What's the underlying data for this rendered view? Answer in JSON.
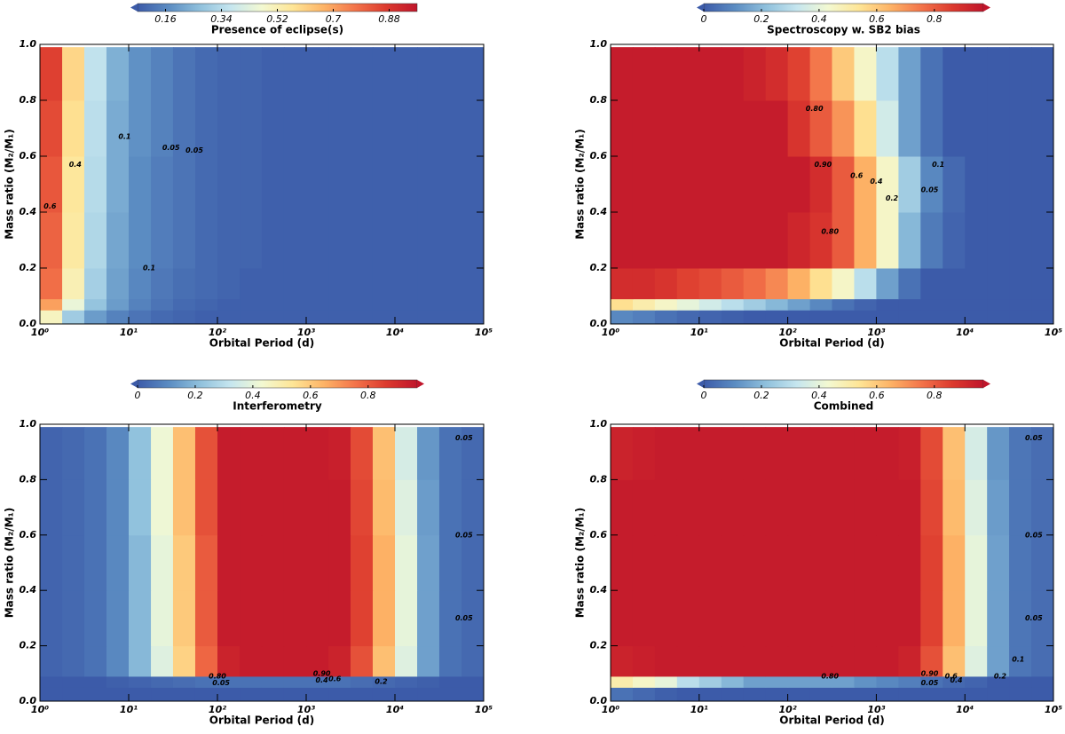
{
  "chart_data": [
    {
      "type": "heatmap",
      "title": "Presence of eclipse(s)",
      "xlabel": "Orbital Period (d)",
      "ylabel": "Mass ratio (M₂/M₁)",
      "xscale": "log",
      "xlim": [
        1,
        100000
      ],
      "ylim": [
        0,
        1
      ],
      "xticks": [
        {
          "value": 1,
          "label": "10⁰"
        },
        {
          "value": 10,
          "label": "10¹"
        },
        {
          "value": 100,
          "label": "10²"
        },
        {
          "value": 1000,
          "label": "10³"
        },
        {
          "value": 10000,
          "label": "10⁴"
        },
        {
          "value": 100000,
          "label": "10⁵"
        }
      ],
      "yticks": [
        {
          "value": 0,
          "label": "0.0"
        },
        0.2,
        0.4,
        0.6,
        0.8,
        {
          "value": 1,
          "label": "1.0"
        }
      ],
      "clim": [
        0.07,
        0.97
      ],
      "cticks": [
        0.16,
        0.34,
        0.52,
        0.7,
        0.88
      ],
      "extend": "min",
      "colormap": [
        "#3c5ba9",
        "#5b8cc2",
        "#8fc0dc",
        "#c6e6ef",
        "#f3f9d2",
        "#fee596",
        "#fdb366",
        "#f3744a",
        "#dc3a2e",
        "#c0152b"
      ],
      "x_edges": [
        1,
        1.78,
        3.16,
        5.62,
        10,
        17.8,
        31.6,
        56.2,
        100,
        178,
        316,
        562,
        1000,
        1780,
        3160,
        5620,
        10000,
        17800,
        31600,
        56200,
        100000
      ],
      "y_edges": [
        0,
        0.05,
        0.09,
        0.2,
        0.4,
        0.6,
        0.8,
        0.99
      ],
      "values": [
        [
          0.5,
          0.3,
          0.2,
          0.15,
          0.12,
          0.1,
          0.09,
          0.08,
          0.08,
          0.08,
          0.08,
          0.08,
          0.08,
          0.08,
          0.08,
          0.08,
          0.08,
          0.08,
          0.08,
          0.08
        ],
        [
          0.7,
          0.45,
          0.28,
          0.2,
          0.15,
          0.12,
          0.1,
          0.09,
          0.08,
          0.08,
          0.08,
          0.08,
          0.08,
          0.08,
          0.08,
          0.08,
          0.08,
          0.08,
          0.08,
          0.08
        ],
        [
          0.78,
          0.52,
          0.31,
          0.21,
          0.16,
          0.13,
          0.11,
          0.1,
          0.09,
          0.08,
          0.08,
          0.08,
          0.08,
          0.08,
          0.08,
          0.08,
          0.08,
          0.08,
          0.08,
          0.08
        ],
        [
          0.8,
          0.55,
          0.33,
          0.22,
          0.17,
          0.14,
          0.12,
          0.1,
          0.09,
          0.09,
          0.08,
          0.08,
          0.08,
          0.08,
          0.08,
          0.08,
          0.08,
          0.08,
          0.08,
          0.08
        ],
        [
          0.82,
          0.56,
          0.34,
          0.23,
          0.17,
          0.14,
          0.12,
          0.1,
          0.09,
          0.09,
          0.08,
          0.08,
          0.08,
          0.08,
          0.08,
          0.08,
          0.08,
          0.08,
          0.08,
          0.08
        ],
        [
          0.84,
          0.58,
          0.35,
          0.23,
          0.18,
          0.15,
          0.12,
          0.1,
          0.09,
          0.09,
          0.08,
          0.08,
          0.08,
          0.08,
          0.08,
          0.08,
          0.08,
          0.08,
          0.08,
          0.08
        ],
        [
          0.86,
          0.6,
          0.36,
          0.24,
          0.18,
          0.15,
          0.12,
          0.1,
          0.09,
          0.09,
          0.08,
          0.08,
          0.08,
          0.08,
          0.08,
          0.08,
          0.08,
          0.08,
          0.08,
          0.08
        ]
      ],
      "annotations": [
        {
          "text": "0.6",
          "x": 1.3,
          "y": 0.42
        },
        {
          "text": "0.4",
          "x": 2.5,
          "y": 0.57
        },
        {
          "text": "0.1",
          "x": 9,
          "y": 0.67
        },
        {
          "text": "0.05",
          "x": 30,
          "y": 0.63
        },
        {
          "text": "0.05",
          "x": 55,
          "y": 0.62
        },
        {
          "text": "0.1",
          "x": 17,
          "y": 0.2
        }
      ]
    },
    {
      "type": "heatmap",
      "title": "Spectroscopy w. SB2 bias",
      "xlabel": "Orbital Period (d)",
      "ylabel": "Mass ratio (M₂/M₁)",
      "xscale": "log",
      "xlim": [
        1,
        100000
      ],
      "ylim": [
        0,
        1
      ],
      "xticks": [
        {
          "value": 1,
          "label": "10⁰"
        },
        {
          "value": 10,
          "label": "10¹"
        },
        {
          "value": 100,
          "label": "10²"
        },
        {
          "value": 1000,
          "label": "10³"
        },
        {
          "value": 10000,
          "label": "10⁴"
        },
        {
          "value": 100000,
          "label": "10⁵"
        }
      ],
      "yticks": [
        {
          "value": 0,
          "label": "0.0"
        },
        0.2,
        0.4,
        0.6,
        0.8,
        {
          "value": 1,
          "label": "1.0"
        }
      ],
      "clim": [
        0,
        0.97
      ],
      "cticks": [
        0,
        0.2,
        0.4,
        0.6,
        0.8
      ],
      "extend": "both",
      "colormap": [
        "#3c5ba9",
        "#5b8cc2",
        "#8fc0dc",
        "#c6e6ef",
        "#f3f9d2",
        "#fee596",
        "#fdb366",
        "#f3744a",
        "#dc3a2e",
        "#c0152b"
      ],
      "x_edges": [
        1,
        1.78,
        3.16,
        5.62,
        10,
        17.8,
        31.6,
        56.2,
        100,
        178,
        316,
        562,
        1000,
        1780,
        3160,
        5620,
        10000,
        17800,
        31600,
        56200,
        100000
      ],
      "y_edges": [
        0,
        0.05,
        0.09,
        0.2,
        0.4,
        0.6,
        0.8,
        0.99
      ],
      "values": [
        [
          0.1,
          0.08,
          0.05,
          0.03,
          0.02,
          0.01,
          0,
          0,
          0,
          0,
          0,
          0,
          0,
          0,
          0,
          0,
          0,
          0,
          0,
          0
        ],
        [
          0.55,
          0.5,
          0.45,
          0.4,
          0.35,
          0.3,
          0.25,
          0.2,
          0.15,
          0.1,
          0.05,
          0.02,
          0,
          0,
          0,
          0,
          0,
          0,
          0,
          0
        ],
        [
          0.9,
          0.9,
          0.88,
          0.85,
          0.83,
          0.8,
          0.77,
          0.72,
          0.65,
          0.55,
          0.45,
          0.3,
          0.15,
          0.05,
          0,
          0,
          0,
          0,
          0,
          0
        ],
        [
          0.95,
          0.95,
          0.95,
          0.95,
          0.95,
          0.95,
          0.95,
          0.95,
          0.92,
          0.88,
          0.8,
          0.65,
          0.45,
          0.2,
          0.07,
          0.02,
          0,
          0,
          0,
          0
        ],
        [
          0.95,
          0.95,
          0.95,
          0.95,
          0.95,
          0.95,
          0.95,
          0.95,
          0.95,
          0.9,
          0.8,
          0.65,
          0.45,
          0.25,
          0.1,
          0.03,
          0,
          0,
          0,
          0
        ],
        [
          0.95,
          0.95,
          0.95,
          0.95,
          0.95,
          0.95,
          0.95,
          0.95,
          0.88,
          0.8,
          0.7,
          0.55,
          0.35,
          0.15,
          0.05,
          0,
          0,
          0,
          0,
          0
        ],
        [
          0.95,
          0.95,
          0.95,
          0.95,
          0.95,
          0.95,
          0.93,
          0.9,
          0.85,
          0.75,
          0.6,
          0.45,
          0.3,
          0.15,
          0.05,
          0,
          0,
          0,
          0,
          0
        ]
      ],
      "annotations": [
        {
          "text": "0.80",
          "x": 200,
          "y": 0.77
        },
        {
          "text": "0.90",
          "x": 250,
          "y": 0.57
        },
        {
          "text": "0.6",
          "x": 600,
          "y": 0.53
        },
        {
          "text": "0.4",
          "x": 1000,
          "y": 0.51
        },
        {
          "text": "0.2",
          "x": 1500,
          "y": 0.45
        },
        {
          "text": "0.05",
          "x": 4000,
          "y": 0.48
        },
        {
          "text": "0.1",
          "x": 5000,
          "y": 0.57
        },
        {
          "text": "0.80",
          "x": 300,
          "y": 0.33
        }
      ]
    },
    {
      "type": "heatmap",
      "title": "Interferometry",
      "xlabel": "Orbital Period (d)",
      "ylabel": "Mass ratio (M₂/M₁)",
      "xscale": "log",
      "xlim": [
        1,
        100000
      ],
      "ylim": [
        0,
        1
      ],
      "xticks": [
        {
          "value": 1,
          "label": "10⁰"
        },
        {
          "value": 10,
          "label": "10¹"
        },
        {
          "value": 100,
          "label": "10²"
        },
        {
          "value": 1000,
          "label": "10³"
        },
        {
          "value": 10000,
          "label": "10⁴"
        },
        {
          "value": 100000,
          "label": "10⁵"
        }
      ],
      "yticks": [
        {
          "value": 0,
          "label": "0.0"
        },
        0.2,
        0.4,
        0.6,
        0.8,
        {
          "value": 1,
          "label": "1.0"
        }
      ],
      "clim": [
        0,
        0.97
      ],
      "cticks": [
        0,
        0.2,
        0.4,
        0.6,
        0.8
      ],
      "extend": "both",
      "colormap": [
        "#3c5ba9",
        "#5b8cc2",
        "#8fc0dc",
        "#c6e6ef",
        "#f3f9d2",
        "#fee596",
        "#fdb366",
        "#f3744a",
        "#dc3a2e",
        "#c0152b"
      ],
      "x_edges": [
        1,
        1.78,
        3.16,
        5.62,
        10,
        17.8,
        31.6,
        56.2,
        100,
        178,
        316,
        562,
        1000,
        1780,
        3160,
        5620,
        10000,
        17800,
        31600,
        56200,
        100000
      ],
      "y_edges": [
        0,
        0.05,
        0.09,
        0.2,
        0.4,
        0.6,
        0.8,
        0.99
      ],
      "values": [
        [
          0,
          0,
          0,
          0,
          0,
          0,
          0,
          0,
          0,
          0,
          0,
          0,
          0,
          0,
          0,
          0,
          0,
          0,
          0,
          0
        ],
        [
          0,
          0,
          0,
          0.01,
          0.02,
          0.03,
          0.04,
          0.05,
          0.05,
          0.05,
          0.05,
          0.05,
          0.05,
          0.05,
          0.04,
          0.03,
          0.02,
          0.01,
          0,
          0
        ],
        [
          0.02,
          0.03,
          0.05,
          0.1,
          0.2,
          0.38,
          0.58,
          0.78,
          0.93,
          0.95,
          0.95,
          0.95,
          0.95,
          0.93,
          0.82,
          0.62,
          0.38,
          0.15,
          0.05,
          0.03
        ],
        [
          0.02,
          0.03,
          0.05,
          0.1,
          0.2,
          0.4,
          0.6,
          0.8,
          0.95,
          0.95,
          0.95,
          0.95,
          0.95,
          0.95,
          0.85,
          0.65,
          0.4,
          0.15,
          0.05,
          0.03
        ],
        [
          0.02,
          0.03,
          0.05,
          0.1,
          0.2,
          0.4,
          0.6,
          0.8,
          0.95,
          0.95,
          0.95,
          0.95,
          0.95,
          0.95,
          0.85,
          0.65,
          0.4,
          0.15,
          0.05,
          0.03
        ],
        [
          0.02,
          0.03,
          0.05,
          0.1,
          0.22,
          0.42,
          0.62,
          0.82,
          0.95,
          0.95,
          0.95,
          0.95,
          0.95,
          0.95,
          0.84,
          0.63,
          0.38,
          0.14,
          0.05,
          0.03
        ],
        [
          0.02,
          0.03,
          0.05,
          0.1,
          0.22,
          0.42,
          0.62,
          0.82,
          0.95,
          0.95,
          0.95,
          0.95,
          0.95,
          0.94,
          0.83,
          0.62,
          0.36,
          0.13,
          0.05,
          0.03
        ]
      ],
      "annotations": [
        {
          "text": "0.80",
          "x": 100,
          "y": 0.09
        },
        {
          "text": "0.05",
          "x": 110,
          "y": 0.065
        },
        {
          "text": "0.90",
          "x": 1500,
          "y": 0.1
        },
        {
          "text": "0.4",
          "x": 1500,
          "y": 0.075
        },
        {
          "text": "0.6",
          "x": 2100,
          "y": 0.08
        },
        {
          "text": "0.2",
          "x": 7000,
          "y": 0.07
        },
        {
          "text": "0.05",
          "x": 60000,
          "y": 0.6
        },
        {
          "text": "0.05",
          "x": 60000,
          "y": 0.95
        },
        {
          "text": "0.05",
          "x": 60000,
          "y": 0.3
        }
      ]
    },
    {
      "type": "heatmap",
      "title": "Combined",
      "xlabel": "Orbital Period (d)",
      "ylabel": "Mass ratio (M₂/M₁)",
      "xscale": "log",
      "xlim": [
        1,
        100000
      ],
      "ylim": [
        0,
        1
      ],
      "xticks": [
        {
          "value": 1,
          "label": "10⁰"
        },
        {
          "value": 10,
          "label": "10¹"
        },
        {
          "value": 100,
          "label": "10²"
        },
        {
          "value": 1000,
          "label": "10³"
        },
        {
          "value": 10000,
          "label": "10⁴"
        },
        {
          "value": 100000,
          "label": "10⁵"
        }
      ],
      "yticks": [
        {
          "value": 0,
          "label": "0.0"
        },
        0.2,
        0.4,
        0.6,
        0.8,
        {
          "value": 1,
          "label": "1.0"
        }
      ],
      "clim": [
        0,
        0.97
      ],
      "cticks": [
        0,
        0.2,
        0.4,
        0.6,
        0.8
      ],
      "extend": "both",
      "colormap": [
        "#3c5ba9",
        "#5b8cc2",
        "#8fc0dc",
        "#c6e6ef",
        "#f3f9d2",
        "#fee596",
        "#fdb366",
        "#f3744a",
        "#dc3a2e",
        "#c0152b"
      ],
      "x_edges": [
        1,
        1.78,
        3.16,
        5.62,
        10,
        17.8,
        31.6,
        56.2,
        100,
        178,
        316,
        562,
        1000,
        1780,
        3160,
        5620,
        10000,
        17800,
        31600,
        56200,
        100000
      ],
      "y_edges": [
        0,
        0.05,
        0.09,
        0.2,
        0.4,
        0.6,
        0.8,
        0.99
      ],
      "values": [
        [
          0.05,
          0.03,
          0.01,
          0,
          0,
          0,
          0,
          0,
          0,
          0,
          0,
          0,
          0,
          0,
          0,
          0,
          0,
          0,
          0,
          0
        ],
        [
          0.5,
          0.45,
          0.4,
          0.3,
          0.25,
          0.2,
          0.15,
          0.15,
          0.15,
          0.15,
          0.15,
          0.12,
          0.1,
          0.08,
          0.05,
          0.03,
          0.02,
          0,
          0,
          0
        ],
        [
          0.93,
          0.94,
          0.95,
          0.95,
          0.95,
          0.95,
          0.95,
          0.95,
          0.95,
          0.95,
          0.95,
          0.95,
          0.95,
          0.93,
          0.82,
          0.62,
          0.38,
          0.15,
          0.06,
          0.04
        ],
        [
          0.95,
          0.95,
          0.95,
          0.95,
          0.95,
          0.95,
          0.95,
          0.95,
          0.95,
          0.95,
          0.95,
          0.95,
          0.95,
          0.95,
          0.85,
          0.65,
          0.4,
          0.15,
          0.06,
          0.04
        ],
        [
          0.95,
          0.95,
          0.95,
          0.95,
          0.95,
          0.95,
          0.95,
          0.95,
          0.95,
          0.95,
          0.95,
          0.95,
          0.95,
          0.95,
          0.85,
          0.65,
          0.4,
          0.15,
          0.06,
          0.04
        ],
        [
          0.95,
          0.95,
          0.95,
          0.95,
          0.95,
          0.95,
          0.95,
          0.95,
          0.95,
          0.95,
          0.95,
          0.95,
          0.95,
          0.95,
          0.84,
          0.63,
          0.38,
          0.14,
          0.06,
          0.04
        ],
        [
          0.93,
          0.94,
          0.95,
          0.95,
          0.95,
          0.95,
          0.95,
          0.95,
          0.95,
          0.95,
          0.95,
          0.95,
          0.95,
          0.94,
          0.83,
          0.62,
          0.36,
          0.13,
          0.06,
          0.04
        ]
      ],
      "annotations": [
        {
          "text": "0.80",
          "x": 300,
          "y": 0.09
        },
        {
          "text": "0.90",
          "x": 4000,
          "y": 0.1
        },
        {
          "text": "0.05",
          "x": 4000,
          "y": 0.065
        },
        {
          "text": "0.6",
          "x": 7000,
          "y": 0.09
        },
        {
          "text": "0.4",
          "x": 8000,
          "y": 0.075
        },
        {
          "text": "0.2",
          "x": 25000,
          "y": 0.09
        },
        {
          "text": "0.1",
          "x": 40000,
          "y": 0.15
        },
        {
          "text": "0.05",
          "x": 60000,
          "y": 0.3
        },
        {
          "text": "0.05",
          "x": 60000,
          "y": 0.6
        },
        {
          "text": "0.05",
          "x": 60000,
          "y": 0.95
        }
      ]
    }
  ]
}
